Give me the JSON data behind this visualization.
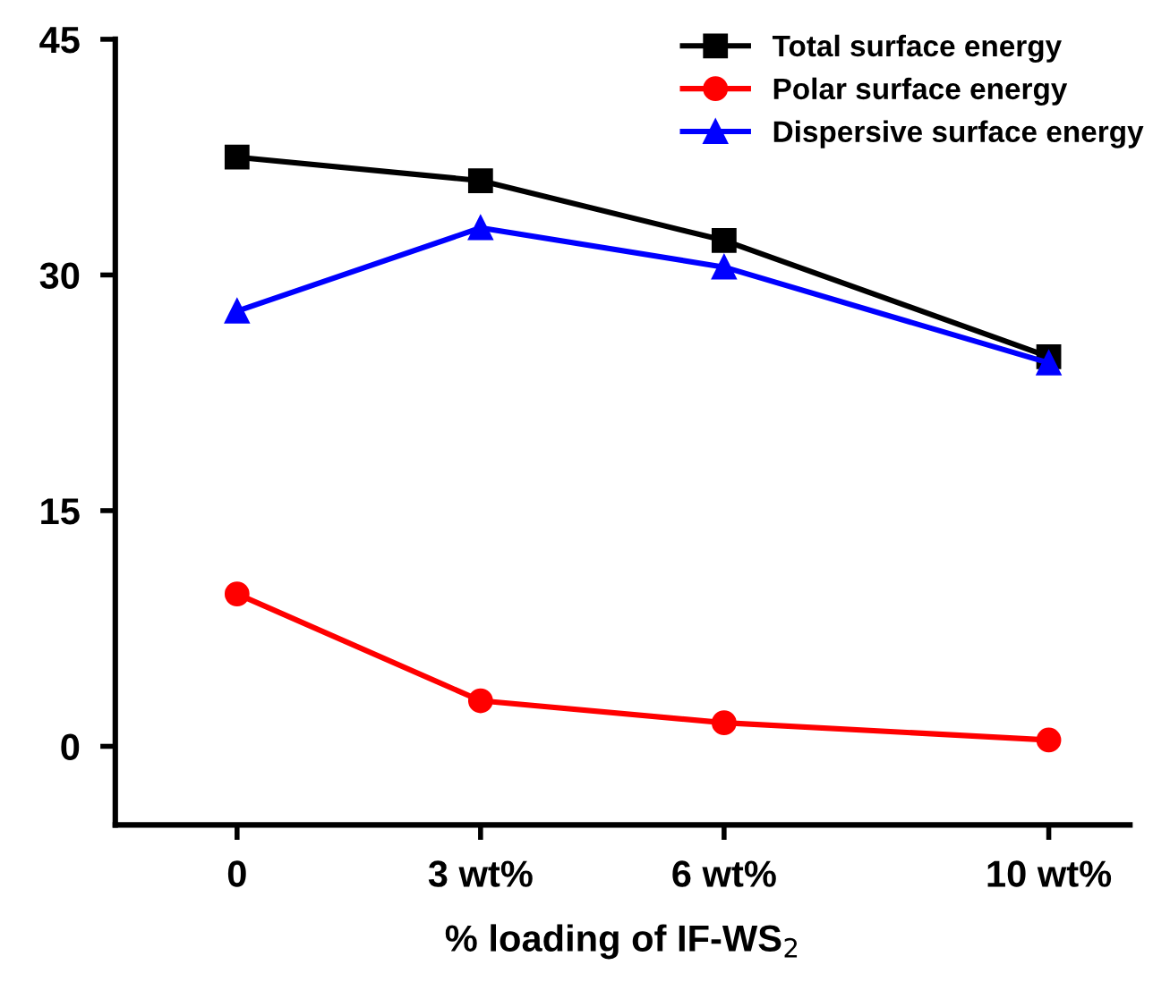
{
  "chart_data": {
    "type": "line",
    "xlabel": "% loading of IF-WS$_{2}$",
    "x": [
      0,
      3,
      6,
      10
    ],
    "series": [
      {
        "name": "Total surface energy",
        "color": "#000000",
        "marker": "square",
        "values": [
          37.5,
          36.0,
          32.2,
          24.8
        ]
      },
      {
        "name": "Polar surface energy",
        "color": "#ff0000",
        "marker": "circle",
        "values": [
          9.7,
          2.9,
          1.5,
          0.4
        ]
      },
      {
        "name": "Dispersive surface energy",
        "color": "#0000ff",
        "marker": "triangle",
        "values": [
          27.7,
          33.0,
          30.5,
          24.4
        ]
      }
    ],
    "xlim": [
      -1.5,
      11
    ],
    "xticks": [
      {
        "value": 0,
        "label": "0"
      },
      {
        "value": 3,
        "label": "3 wt%"
      },
      {
        "value": 6,
        "label": "6 wt%"
      },
      {
        "value": 10,
        "label": "10 wt%"
      }
    ],
    "ylim": [
      -5,
      45
    ],
    "yticks": [
      0,
      15,
      30,
      45
    ],
    "grid": false,
    "legend": "top right",
    "line_style": "solid"
  }
}
